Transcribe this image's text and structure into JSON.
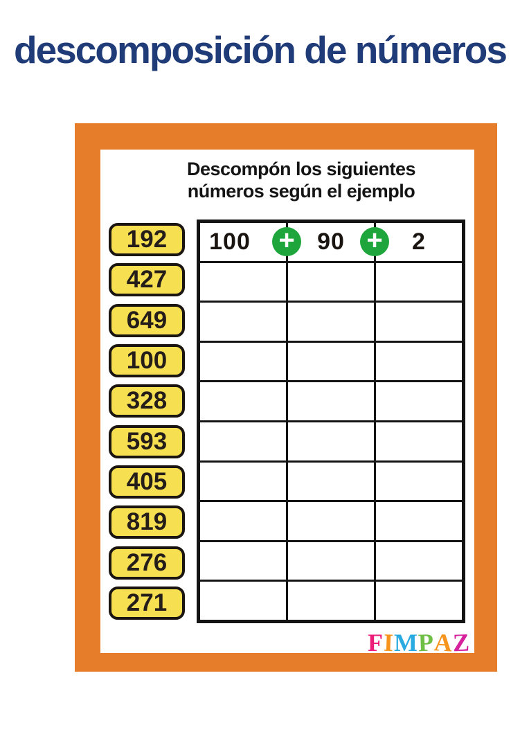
{
  "page": {
    "title": "descomposición de números",
    "title_color": "#1F3B78",
    "background": "#ffffff"
  },
  "worksheet": {
    "frame_color": "#E57D2A",
    "instructions_line1": "Descompón los siguientes",
    "instructions_line2": "números según el ejemplo",
    "numbers": [
      "192",
      "427",
      "649",
      "100",
      "328",
      "593",
      "405",
      "819",
      "276",
      "271"
    ],
    "number_box_color": "#F6DF51",
    "table": {
      "rows": 10,
      "columns": 3
    },
    "example": {
      "source_number": "192",
      "parts": [
        "100",
        "90",
        "2"
      ],
      "plus_glyph": "+",
      "plus_color": "#1EA63C"
    },
    "logo": {
      "name": "FIMPAZ",
      "letters": [
        {
          "char": "F",
          "color": "#EC1E79"
        },
        {
          "char": "I",
          "color": "#F7941D"
        },
        {
          "char": "M",
          "color": "#29ABE2"
        },
        {
          "char": "P",
          "color": "#6FBE45"
        },
        {
          "char": "A",
          "color": "#F7941D"
        },
        {
          "char": "Z",
          "color": "#D6219C"
        }
      ]
    }
  }
}
